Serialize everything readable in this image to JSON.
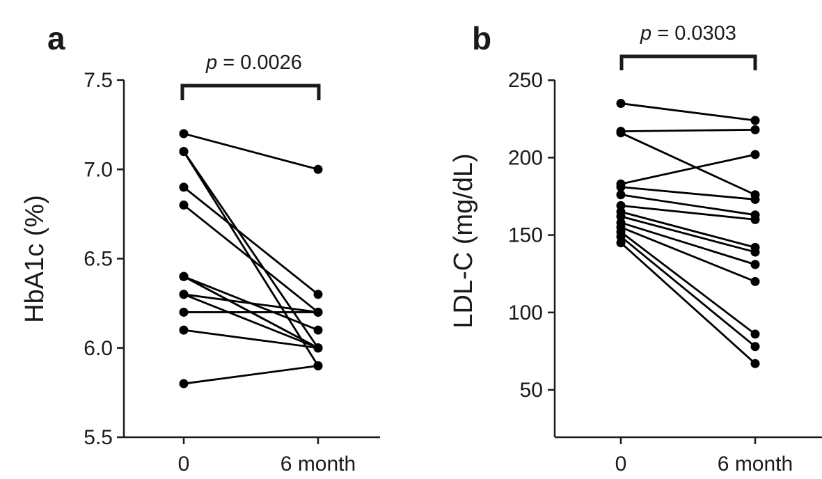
{
  "chart_data": [
    {
      "type": "line",
      "panel_label": "a",
      "ylabel": "HbA1c (%)",
      "categories": [
        "0",
        "6 month"
      ],
      "yticks": [
        "5.5",
        "6.0",
        "6.5",
        "7.0",
        "7.5"
      ],
      "ylim": [
        5.5,
        7.5
      ],
      "annotation": {
        "text_italic": "p",
        "text_rest": " = 0.0026"
      },
      "series": [
        {
          "values": [
            7.2,
            7.0
          ]
        },
        {
          "values": [
            7.1,
            6.0
          ]
        },
        {
          "values": [
            7.1,
            5.9
          ]
        },
        {
          "values": [
            6.9,
            6.3
          ]
        },
        {
          "values": [
            6.8,
            6.2
          ]
        },
        {
          "values": [
            6.4,
            6.0
          ]
        },
        {
          "values": [
            6.4,
            6.1
          ]
        },
        {
          "values": [
            6.4,
            6.0
          ]
        },
        {
          "values": [
            6.3,
            6.2
          ]
        },
        {
          "values": [
            6.3,
            6.0
          ]
        },
        {
          "values": [
            6.2,
            6.2
          ]
        },
        {
          "values": [
            6.1,
            6.0
          ]
        },
        {
          "values": [
            5.8,
            5.9
          ]
        }
      ]
    },
    {
      "type": "line",
      "panel_label": "b",
      "ylabel": "LDL-C (mg/dL)",
      "categories": [
        "0",
        "6 month"
      ],
      "yticks": [
        "50",
        "100",
        "150",
        "200",
        "250"
      ],
      "ylim": [
        30,
        250
      ],
      "annotation": {
        "text_italic": "p",
        "text_rest": " = 0.0303"
      },
      "series": [
        {
          "values": [
            235,
            224
          ]
        },
        {
          "values": [
            217,
            218
          ]
        },
        {
          "values": [
            216,
            176
          ]
        },
        {
          "values": [
            183,
            202
          ]
        },
        {
          "values": [
            181,
            173
          ]
        },
        {
          "values": [
            176,
            163
          ]
        },
        {
          "values": [
            169,
            160
          ]
        },
        {
          "values": [
            165,
            142
          ]
        },
        {
          "values": [
            162,
            139
          ]
        },
        {
          "values": [
            158,
            131
          ]
        },
        {
          "values": [
            155,
            120
          ]
        },
        {
          "values": [
            152,
            86
          ]
        },
        {
          "values": [
            149,
            78
          ]
        },
        {
          "values": [
            145,
            67
          ]
        }
      ]
    }
  ]
}
